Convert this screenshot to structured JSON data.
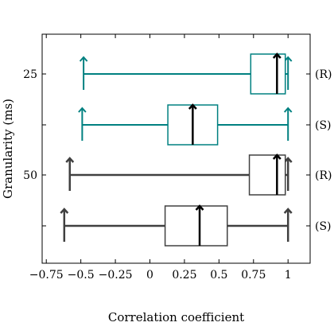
{
  "chart_data": {
    "type": "boxplot",
    "orientation": "horizontal",
    "xlabel": "Correlation coefficient",
    "ylabel": "Granularity (ms)",
    "xlim": [
      -0.78,
      1.16
    ],
    "xticks": [
      -0.75,
      -0.5,
      -0.25,
      0,
      0.25,
      0.5,
      0.75,
      1
    ],
    "xtick_labels": [
      "−0.75",
      "−0.5",
      "−0.25",
      "0",
      "0.25",
      "0.5",
      "0.75",
      "1"
    ],
    "y_groups": [
      {
        "label": "25"
      },
      {
        "label": "50"
      }
    ],
    "colors": {
      "teal": "#008080",
      "dark": "#404040",
      "median": "#000000"
    },
    "boxes": [
      {
        "tag": "(R)",
        "group": "25",
        "color": "teal",
        "whisker_low": -0.48,
        "q1": 0.73,
        "median": 0.92,
        "q3": 0.98,
        "whisker_high": 1.0
      },
      {
        "tag": "(S)",
        "group": "25",
        "color": "teal",
        "whisker_low": -0.49,
        "q1": 0.13,
        "median": 0.31,
        "q3": 0.49,
        "whisker_high": 1.0
      },
      {
        "tag": "(R)",
        "group": "50",
        "color": "dark",
        "whisker_low": -0.58,
        "q1": 0.72,
        "median": 0.92,
        "q3": 0.98,
        "whisker_high": 1.0
      },
      {
        "tag": "(S)",
        "group": "50",
        "color": "dark",
        "whisker_low": -0.62,
        "q1": 0.11,
        "median": 0.36,
        "q3": 0.56,
        "whisker_high": 1.0
      }
    ]
  }
}
